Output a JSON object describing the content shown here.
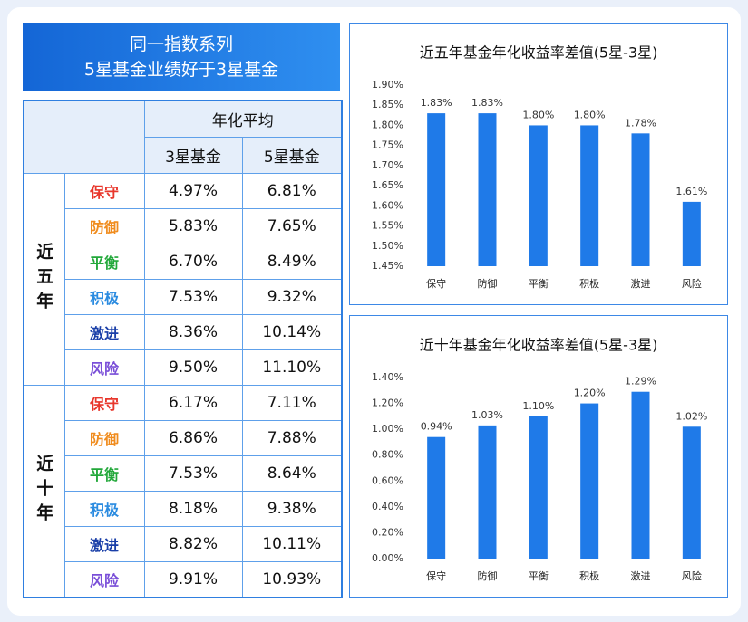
{
  "header": {
    "title_lines": [
      "同一指数系列",
      "5星基金业绩好于3星基金"
    ]
  },
  "table": {
    "header": {
      "span_title": "年化平均",
      "columns": [
        "3星基金",
        "5星基金"
      ]
    },
    "groups": [
      {
        "label": "近五年",
        "rows": [
          {
            "name": "保守",
            "color": "#e8372c",
            "values": [
              "4.97%",
              "6.81%"
            ]
          },
          {
            "name": "防御",
            "color": "#f08c1e",
            "values": [
              "5.83%",
              "7.65%"
            ]
          },
          {
            "name": "平衡",
            "color": "#22a83a",
            "values": [
              "6.70%",
              "8.49%"
            ]
          },
          {
            "name": "积极",
            "color": "#2a8be0",
            "values": [
              "7.53%",
              "9.32%"
            ]
          },
          {
            "name": "激进",
            "color": "#1a3fa8",
            "values": [
              "8.36%",
              "10.14%"
            ]
          },
          {
            "name": "风险",
            "color": "#7a4fd8",
            "values": [
              "9.50%",
              "11.10%"
            ]
          }
        ]
      },
      {
        "label": "近十年",
        "rows": [
          {
            "name": "保守",
            "color": "#e8372c",
            "values": [
              "6.17%",
              "7.11%"
            ]
          },
          {
            "name": "防御",
            "color": "#f08c1e",
            "values": [
              "6.86%",
              "7.88%"
            ]
          },
          {
            "name": "平衡",
            "color": "#22a83a",
            "values": [
              "7.53%",
              "8.64%"
            ]
          },
          {
            "name": "积极",
            "color": "#2a8be0",
            "values": [
              "8.18%",
              "9.38%"
            ]
          },
          {
            "name": "激进",
            "color": "#1a3fa8",
            "values": [
              "8.82%",
              "10.11%"
            ]
          },
          {
            "name": "风险",
            "color": "#7a4fd8",
            "values": [
              "9.91%",
              "10.93%"
            ]
          }
        ]
      }
    ]
  },
  "chart_data": [
    {
      "type": "bar",
      "title": "近五年基金年化收益率差值(5星-3星)",
      "categories": [
        "保守",
        "防御",
        "平衡",
        "积极",
        "激进",
        "风险"
      ],
      "values": [
        1.83,
        1.83,
        1.8,
        1.8,
        1.78,
        1.61
      ],
      "value_labels": [
        "1.83%",
        "1.83%",
        "1.80%",
        "1.80%",
        "1.78%",
        "1.61%"
      ],
      "color": "#1f7ae8",
      "ylim": [
        1.45,
        1.9
      ],
      "yticks": [
        {
          "value": 1.45,
          "label": "1.45%"
        },
        {
          "value": 1.5,
          "label": "1.50%"
        },
        {
          "value": 1.55,
          "label": "1.55%"
        },
        {
          "value": 1.6,
          "label": "1.60%"
        },
        {
          "value": 1.65,
          "label": "1.65%"
        },
        {
          "value": 1.7,
          "label": "1.70%"
        },
        {
          "value": 1.75,
          "label": "1.75%"
        },
        {
          "value": 1.8,
          "label": "1.80%"
        },
        {
          "value": 1.85,
          "label": "1.85%"
        },
        {
          "value": 1.9,
          "label": "1.90%"
        }
      ]
    },
    {
      "type": "bar",
      "title": "近十年基金年化收益率差值(5星-3星)",
      "categories": [
        "保守",
        "防御",
        "平衡",
        "积极",
        "激进",
        "风险"
      ],
      "values": [
        0.94,
        1.03,
        1.1,
        1.2,
        1.29,
        1.02
      ],
      "value_labels": [
        "0.94%",
        "1.03%",
        "1.10%",
        "1.20%",
        "1.29%",
        "1.02%"
      ],
      "color": "#1f7ae8",
      "ylim": [
        0,
        1.4
      ],
      "yticks": [
        {
          "value": 0,
          "label": "0.00%"
        },
        {
          "value": 0.2,
          "label": "0.20%"
        },
        {
          "value": 0.4,
          "label": "0.40%"
        },
        {
          "value": 0.6,
          "label": "0.60%"
        },
        {
          "value": 0.8,
          "label": "0.80%"
        },
        {
          "value": 1.0,
          "label": "1.00%"
        },
        {
          "value": 1.2,
          "label": "1.20%"
        },
        {
          "value": 1.4,
          "label": "1.40%"
        }
      ]
    }
  ]
}
